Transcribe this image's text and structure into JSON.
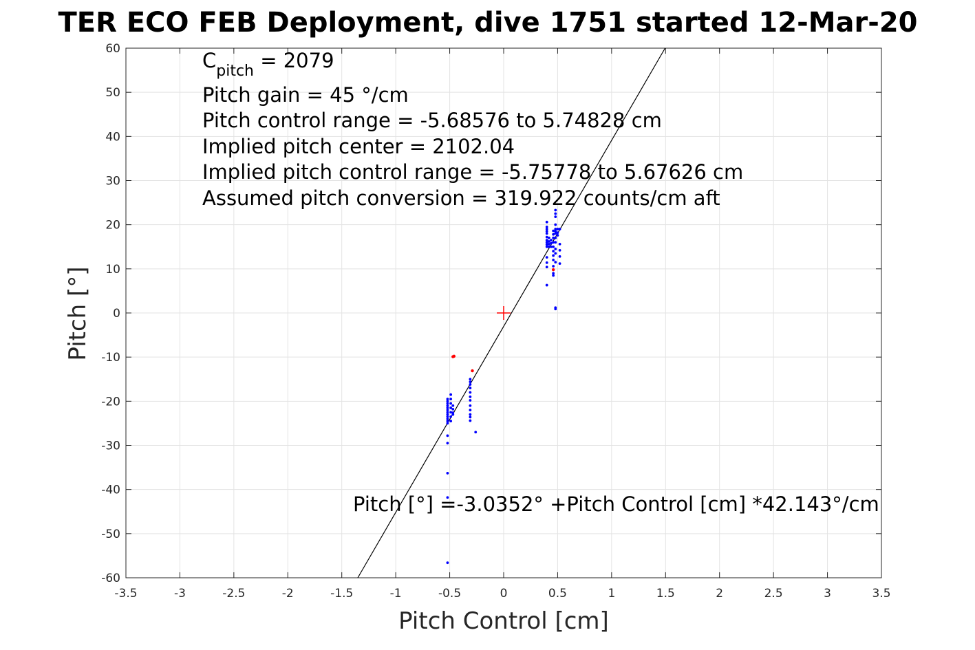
{
  "chart_data": {
    "type": "scatter",
    "title": "TER ECO FEB Deployment, dive 1751 started 12-Mar-20",
    "xlabel": "Pitch Control [cm]",
    "ylabel": "Pitch [°]",
    "xlim": [
      -3.5,
      3.5
    ],
    "ylim": [
      -60,
      60
    ],
    "xticks": [
      "-3.5",
      "-3",
      "-2.5",
      "-2",
      "-1.5",
      "-1",
      "-0.5",
      "0",
      "0.5",
      "1",
      "1.5",
      "2",
      "2.5",
      "3",
      "3.5"
    ],
    "yticks": [
      "60",
      "50",
      "40",
      "30",
      "20",
      "10",
      "0",
      "-10",
      "-20",
      "-30",
      "-40",
      "-50",
      "-60"
    ],
    "grid": true,
    "annotations": {
      "c_pitch_symbol": "C",
      "c_pitch_sub": "pitch",
      "c_pitch_value": " = 2079",
      "line2": "Pitch gain = 45 °/cm",
      "line3": "Pitch control range = -5.68576 to 5.74828 cm",
      "line4": "Implied pitch center = 2102.04",
      "line5": "Implied pitch control range = -5.75778 to 5.67626 cm",
      "line6": "Assumed pitch conversion = 319.922 counts/cm aft"
    },
    "fit_equation": "Pitch [°] =-3.0352° +Pitch Control [cm] *42.143°/cm",
    "fit": {
      "intercept": -3.0352,
      "slope": 42.143
    },
    "center_marker": {
      "x": 0,
      "y": 0
    },
    "colors": {
      "series_main": "#0000ff",
      "series_flagged": "#ff0000",
      "fit_line": "#000000",
      "center_marker": "#ff0000"
    },
    "series": [
      {
        "color": "blue",
        "points": [
          [
            -0.52,
            -20
          ],
          [
            -0.52,
            -20.5
          ],
          [
            -0.52,
            -21
          ],
          [
            -0.52,
            -21.5
          ],
          [
            -0.52,
            -22
          ],
          [
            -0.52,
            -22.5
          ],
          [
            -0.52,
            -23
          ],
          [
            -0.52,
            -23.5
          ],
          [
            -0.52,
            -24
          ],
          [
            -0.52,
            -24.5
          ],
          [
            -0.52,
            -25
          ],
          [
            -0.52,
            -19.5
          ],
          [
            -0.52,
            -27.8
          ],
          [
            -0.52,
            -29.5
          ],
          [
            -0.52,
            -36.3
          ],
          [
            -0.52,
            -41.8
          ],
          [
            -0.52,
            -56.6
          ],
          [
            -0.49,
            -18.5
          ],
          [
            -0.49,
            -19.5
          ],
          [
            -0.49,
            -20.5
          ],
          [
            -0.49,
            -21.5
          ],
          [
            -0.49,
            -22.5
          ],
          [
            -0.49,
            -23.5
          ],
          [
            -0.49,
            -24.5
          ],
          [
            -0.47,
            -21
          ],
          [
            -0.47,
            -21.8
          ],
          [
            -0.47,
            -22.6
          ],
          [
            -0.47,
            -23
          ],
          [
            -0.31,
            -15
          ],
          [
            -0.31,
            -15.6
          ],
          [
            -0.31,
            -16.2
          ],
          [
            -0.31,
            -17
          ],
          [
            -0.31,
            -18
          ],
          [
            -0.31,
            -19
          ],
          [
            -0.31,
            -19.8
          ],
          [
            -0.31,
            -21
          ],
          [
            -0.31,
            -22
          ],
          [
            -0.31,
            -23
          ],
          [
            -0.31,
            -23.6
          ],
          [
            -0.31,
            -24.4
          ],
          [
            -0.26,
            -27
          ],
          [
            0.4,
            20.6
          ],
          [
            0.4,
            19.5
          ],
          [
            0.4,
            19
          ],
          [
            0.4,
            18.5
          ],
          [
            0.4,
            18
          ],
          [
            0.4,
            17.2
          ],
          [
            0.4,
            16.5
          ],
          [
            0.4,
            16
          ],
          [
            0.4,
            15.5
          ],
          [
            0.4,
            15
          ],
          [
            0.4,
            12.6
          ],
          [
            0.4,
            11.4
          ],
          [
            0.4,
            10.4
          ],
          [
            0.4,
            6.3
          ],
          [
            0.42,
            17
          ],
          [
            0.42,
            16.2
          ],
          [
            0.42,
            15.6
          ],
          [
            0.42,
            15
          ],
          [
            0.44,
            16.5
          ],
          [
            0.44,
            15.8
          ],
          [
            0.44,
            15
          ],
          [
            0.46,
            18.6
          ],
          [
            0.46,
            17.8
          ],
          [
            0.46,
            17
          ],
          [
            0.46,
            16
          ],
          [
            0.46,
            15
          ],
          [
            0.46,
            14
          ],
          [
            0.46,
            13
          ],
          [
            0.46,
            12
          ],
          [
            0.46,
            10.6
          ],
          [
            0.46,
            9
          ],
          [
            0.46,
            8.5
          ],
          [
            0.48,
            23.3
          ],
          [
            0.48,
            22.5
          ],
          [
            0.48,
            21.8
          ],
          [
            0.48,
            20
          ],
          [
            0.48,
            19
          ],
          [
            0.48,
            18.5
          ],
          [
            0.48,
            18
          ],
          [
            0.48,
            17
          ],
          [
            0.48,
            16
          ],
          [
            0.48,
            14.5
          ],
          [
            0.48,
            13.5
          ],
          [
            0.48,
            11.5
          ],
          [
            0.48,
            1.2
          ],
          [
            0.48,
            0.9
          ],
          [
            0.5,
            19
          ],
          [
            0.5,
            18.2
          ],
          [
            0.5,
            17.6
          ],
          [
            0.52,
            19
          ],
          [
            0.52,
            15.6
          ],
          [
            0.52,
            14.2
          ],
          [
            0.52,
            12.8
          ],
          [
            0.52,
            11.2
          ]
        ]
      },
      {
        "color": "red",
        "points": [
          [
            -0.47,
            -9.9
          ],
          [
            -0.46,
            -9.8
          ],
          [
            -0.29,
            -13.1
          ],
          [
            0.46,
            9.8
          ]
        ]
      }
    ]
  }
}
